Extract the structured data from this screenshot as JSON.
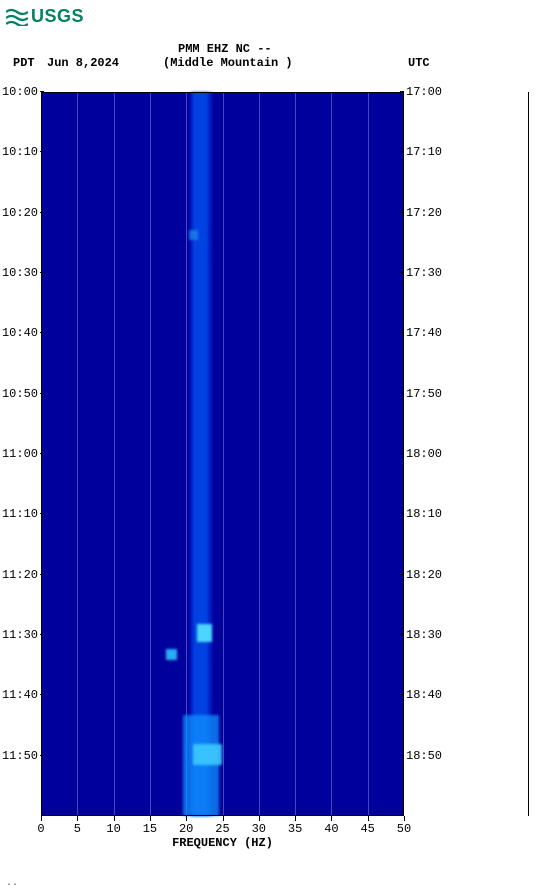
{
  "logo": {
    "text": "USGS",
    "color": "#008264"
  },
  "header": {
    "tz_left": "PDT",
    "date": "Jun 8,2024",
    "station": "PMM EHZ NC --",
    "location": "(Middle Mountain )",
    "tz_right": "UTC"
  },
  "chart": {
    "type": "spectrogram",
    "background_color": "#00009c",
    "grid_color": "rgba(200,200,255,0.35)",
    "x_axis": {
      "label": "FREQUENCY (HZ)",
      "min": 0,
      "max": 50,
      "tick_step": 5,
      "ticks": [
        "0",
        "5",
        "10",
        "15",
        "20",
        "25",
        "30",
        "35",
        "40",
        "45",
        "50"
      ],
      "label_fontsize": 12
    },
    "y_axis_left": {
      "label": "PDT",
      "min": "10:00",
      "max": "11:59",
      "ticks": [
        "10:00",
        "10:10",
        "10:20",
        "10:30",
        "10:40",
        "10:50",
        "11:00",
        "11:10",
        "11:20",
        "11:30",
        "11:40",
        "11:50"
      ]
    },
    "y_axis_right": {
      "label": "UTC",
      "ticks": [
        "17:00",
        "17:10",
        "17:20",
        "17:30",
        "17:40",
        "17:50",
        "18:00",
        "18:10",
        "18:20",
        "18:30",
        "18:40",
        "18:50"
      ]
    },
    "vertical_gridlines_hz": [
      5,
      10,
      15,
      20,
      25,
      30,
      35,
      40,
      45
    ],
    "features": [
      {
        "shape": "band",
        "hz_center": 22,
        "hz_width": 3,
        "t_frac_start": 0.0,
        "t_frac_end": 1.0,
        "color": "#0033dd",
        "opacity": 0.6
      },
      {
        "shape": "band",
        "hz_center": 22,
        "hz_width": 2,
        "t_frac_start": 0.0,
        "t_frac_end": 1.0,
        "color": "#0066ff",
        "opacity": 0.5
      },
      {
        "shape": "blot",
        "hz_center": 22,
        "hz_width": 5,
        "t_frac_start": 0.86,
        "t_frac_end": 1.0,
        "color": "#1090ff",
        "opacity": 0.75
      },
      {
        "shape": "blot",
        "hz_center": 22.5,
        "hz_width": 2,
        "t_frac_start": 0.735,
        "t_frac_end": 0.76,
        "color": "#50e0ff",
        "opacity": 0.95
      },
      {
        "shape": "blot",
        "hz_center": 18,
        "hz_width": 1.5,
        "t_frac_start": 0.77,
        "t_frac_end": 0.785,
        "color": "#30c0ff",
        "opacity": 0.9
      },
      {
        "shape": "blot",
        "hz_center": 21,
        "hz_width": 1.2,
        "t_frac_start": 0.19,
        "t_frac_end": 0.205,
        "color": "#2090ee",
        "opacity": 0.7
      },
      {
        "shape": "blot",
        "hz_center": 23,
        "hz_width": 4,
        "t_frac_start": 0.9,
        "t_frac_end": 0.93,
        "color": "#40d0ff",
        "opacity": 0.85
      }
    ]
  },
  "text_color": "#000000",
  "footer_mark": ".."
}
